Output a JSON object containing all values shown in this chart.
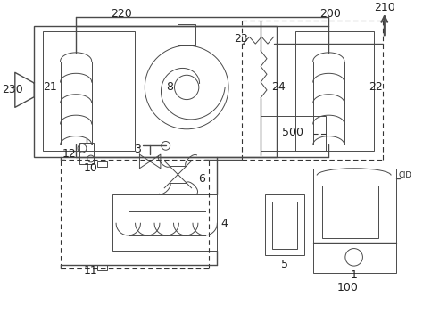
{
  "bg_color": "#ffffff",
  "lc": "#4a4a4a",
  "dc": "#333333",
  "figsize": [
    4.74,
    3.61
  ],
  "dpi": 100
}
